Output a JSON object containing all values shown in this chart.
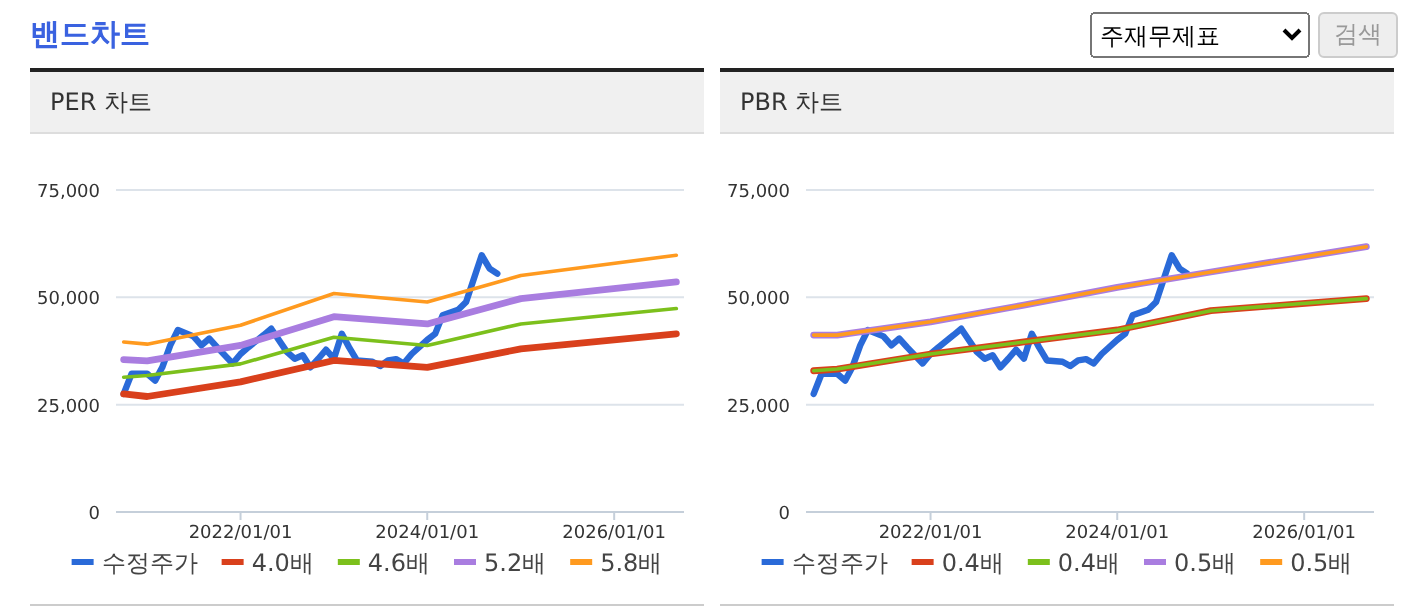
{
  "chart_data": [
    {
      "type": "other",
      "title": "밴드차트",
      "annotations": [
        "주재무제표",
        "검색"
      ]
    },
    {
      "type": "line",
      "title": "PER 차트",
      "xlim": [
        "2020-09",
        "2026-10"
      ],
      "xticks": [
        {
          "value": "2022-01-01",
          "label": "2022/01/01"
        },
        {
          "value": "2024-01-01",
          "label": "2024/01/01"
        },
        {
          "value": "2026-01-01",
          "label": "2026/01/01"
        }
      ],
      "ylim": [
        0,
        75000
      ],
      "yticks": [
        0,
        {
          "value": 25000,
          "label": "25,000"
        },
        {
          "value": 50000,
          "label": "50,000"
        },
        {
          "value": 75000,
          "label": "75,000"
        }
      ],
      "grid": "y",
      "legend": "bottom",
      "marker": "none",
      "line_style": "solid",
      "series": [
        {
          "name": "수정주가",
          "color": "#2a6ad8",
          "x": [
            "2020-10",
            "2020-11",
            "2021-01",
            "2021-02",
            "2021-03",
            "2021-04",
            "2021-05",
            "2021-07",
            "2021-08",
            "2021-09",
            "2021-10",
            "2021-12",
            "2022-01",
            "2022-02",
            "2022-04",
            "2022-05",
            "2022-07",
            "2022-08",
            "2022-09",
            "2022-10",
            "2022-11",
            "2022-12",
            "2023-01",
            "2023-02",
            "2023-03",
            "2023-04",
            "2023-06",
            "2023-07",
            "2023-08",
            "2023-09",
            "2023-10",
            "2023-11",
            "2024-01",
            "2024-02",
            "2024-03",
            "2024-05",
            "2024-06",
            "2024-08",
            "2024-09",
            "2024-10"
          ],
          "values": [
            27500,
            32200,
            32200,
            30600,
            33700,
            38800,
            42400,
            40900,
            38800,
            40400,
            38400,
            34600,
            36800,
            38400,
            41200,
            42700,
            37300,
            35700,
            36500,
            33700,
            35700,
            37800,
            35700,
            41500,
            38400,
            35300,
            35000,
            34000,
            35300,
            35600,
            34600,
            36800,
            40100,
            41500,
            45800,
            47100,
            48900,
            59800,
            56700,
            55500
          ]
        },
        {
          "name": "4.0배",
          "color": "#d9401c",
          "x": [
            "2020-10",
            "2021-01",
            "2022-01",
            "2023-01",
            "2024-01",
            "2025-01",
            "2026-09"
          ],
          "values": [
            27500,
            26900,
            30300,
            35300,
            33700,
            38000,
            41500
          ]
        },
        {
          "name": "4.6배",
          "color": "#7cc01c",
          "x": [
            "2020-10",
            "2021-01",
            "2022-01",
            "2023-01",
            "2024-01",
            "2025-01",
            "2026-09"
          ],
          "values": [
            31400,
            31800,
            34500,
            40700,
            38800,
            43800,
            47400
          ]
        },
        {
          "name": "5.2배",
          "color": "#a97de0",
          "x": [
            "2020-10",
            "2021-01",
            "2022-01",
            "2023-01",
            "2024-01",
            "2025-01",
            "2026-09"
          ],
          "values": [
            35500,
            35200,
            38800,
            45500,
            43800,
            49700,
            53600
          ]
        },
        {
          "name": "5.8배",
          "color": "#ff9a1f",
          "x": [
            "2020-10",
            "2021-01",
            "2022-01",
            "2023-01",
            "2024-01",
            "2025-01",
            "2026-09"
          ],
          "values": [
            39600,
            39100,
            43500,
            50900,
            48900,
            55100,
            59800
          ]
        }
      ]
    },
    {
      "type": "line",
      "title": "PBR 차트",
      "xlim": [
        "2020-09",
        "2026-10"
      ],
      "xticks": [
        {
          "value": "2022-01-01",
          "label": "2022/01/01"
        },
        {
          "value": "2024-01-01",
          "label": "2024/01/01"
        },
        {
          "value": "2026-01-01",
          "label": "2026/01/01"
        }
      ],
      "ylim": [
        0,
        75000
      ],
      "yticks": [
        0,
        {
          "value": 25000,
          "label": "25,000"
        },
        {
          "value": 50000,
          "label": "50,000"
        },
        {
          "value": 75000,
          "label": "75,000"
        }
      ],
      "grid": "y",
      "legend": "bottom",
      "marker": "none",
      "line_style": "solid",
      "series": [
        {
          "name": "수정주가",
          "color": "#2a6ad8",
          "x": [
            "2020-10",
            "2020-11",
            "2021-01",
            "2021-02",
            "2021-03",
            "2021-04",
            "2021-05",
            "2021-07",
            "2021-08",
            "2021-09",
            "2021-10",
            "2021-12",
            "2022-01",
            "2022-02",
            "2022-04",
            "2022-05",
            "2022-07",
            "2022-08",
            "2022-09",
            "2022-10",
            "2022-11",
            "2022-12",
            "2023-01",
            "2023-02",
            "2023-03",
            "2023-04",
            "2023-06",
            "2023-07",
            "2023-08",
            "2023-09",
            "2023-10",
            "2023-11",
            "2024-01",
            "2024-02",
            "2024-03",
            "2024-05",
            "2024-06",
            "2024-08",
            "2024-09",
            "2024-10"
          ],
          "values": [
            27500,
            32200,
            32200,
            30600,
            33700,
            38800,
            42400,
            40900,
            38800,
            40400,
            38400,
            34600,
            36800,
            38400,
            41200,
            42700,
            37300,
            35700,
            36500,
            33700,
            35700,
            37800,
            35700,
            41500,
            38400,
            35300,
            35000,
            34000,
            35300,
            35600,
            34600,
            36800,
            40100,
            41500,
            45800,
            47100,
            48900,
            59800,
            56700,
            55500
          ]
        },
        {
          "name": "0.4배",
          "color": "#d9401c",
          "x": [
            "2020-10",
            "2021-01",
            "2022-01",
            "2023-01",
            "2024-01",
            "2025-01",
            "2026-09"
          ],
          "values": [
            32900,
            33300,
            36800,
            39600,
            42400,
            46900,
            49700
          ]
        },
        {
          "name": "0.4배",
          "color": "#7cc01c",
          "x": [
            "2020-10",
            "2021-01",
            "2022-01",
            "2023-01",
            "2024-01",
            "2025-01",
            "2026-09"
          ],
          "values": [
            32900,
            33300,
            36800,
            39600,
            42400,
            46900,
            49700
          ]
        },
        {
          "name": "0.5배",
          "color": "#a97de0",
          "x": [
            "2020-10",
            "2021-01",
            "2022-01",
            "2023-01",
            "2024-01",
            "2025-01",
            "2026-09"
          ],
          "values": [
            41200,
            41200,
            44300,
            48200,
            52300,
            55900,
            61800
          ]
        },
        {
          "name": "0.5배",
          "color": "#ff9a1f",
          "x": [
            "2020-10",
            "2021-01",
            "2022-01",
            "2023-01",
            "2024-01",
            "2025-01",
            "2026-09"
          ],
          "values": [
            41200,
            41200,
            44300,
            48200,
            52300,
            55900,
            61800
          ]
        }
      ]
    }
  ]
}
